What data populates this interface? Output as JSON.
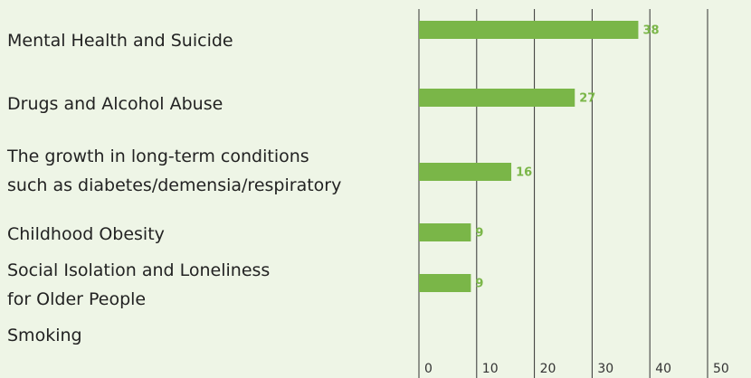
{
  "chart_data": {
    "type": "bar",
    "orientation": "horizontal",
    "categories": [
      "Mental Health and Suicide",
      "Drugs and Alcohol Abuse",
      "The growth in long-term conditions\nsuch as diabetes/demensia/respiratory",
      "Childhood Obesity",
      "Social Isolation and Loneliness\nfor Older People",
      "Smoking"
    ],
    "values": [
      38,
      27,
      16,
      9,
      9,
      0
    ],
    "color": "#7ab648",
    "xlim": [
      0,
      50
    ],
    "xticks": [
      0,
      10,
      20,
      30,
      40,
      50
    ],
    "grid": true
  }
}
